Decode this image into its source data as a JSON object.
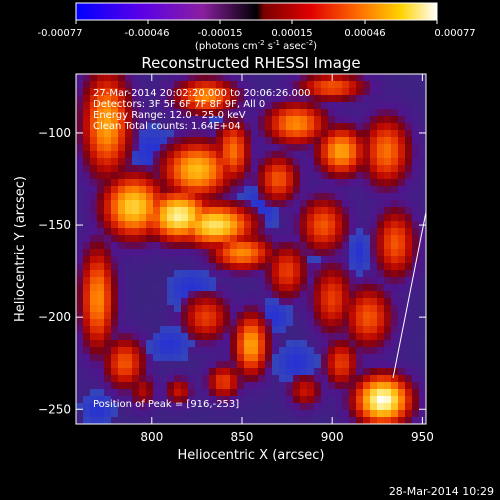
{
  "colorbar": {
    "ticks": [
      "-0.00077",
      "-0.00046",
      "-0.00015",
      "0.00015",
      "0.00046",
      "0.00077"
    ],
    "units_main": "(photons cm",
    "units_sup1": "-2",
    "units_mid1": " s",
    "units_sup2": "-1",
    "units_mid2": " asec",
    "units_sup3": "-2",
    "units_end": ")"
  },
  "annotations": {
    "line1": "27-Mar-2014 20:02:20.000 to 20:06:26.000",
    "line2": "Detectors: 3F 5F 6F 7F 8F 9F, All 0",
    "line3": "Energy Range: 12.0 - 25.0 keV",
    "line4": "Clean     Total counts: 1.64E+04",
    "peak": "Position of Peak = [916,-253]"
  },
  "footer": {
    "timestamp": "28-Mar-2014 10:29"
  },
  "chart_data": {
    "type": "heatmap",
    "title": "Reconstructed RHESSI Image",
    "xlabel": "Heliocentric X (arcsec)",
    "ylabel": "Heliocentric Y (arcsec)",
    "xlim": [
      758,
      952
    ],
    "ylim": [
      -258,
      -68
    ],
    "xticks": [
      800,
      850,
      900,
      950
    ],
    "yticks": [
      -100,
      -150,
      -200,
      -250
    ],
    "colormap": [
      "#0000ff",
      "#6a00e0",
      "#5b2a8a",
      "#3a1f6e",
      "#b00000",
      "#ff4000",
      "#ff8c00",
      "#ffd700",
      "#ffffff"
    ],
    "zlim": [
      -0.00077,
      0.00077
    ],
    "peak": {
      "x": 916,
      "y": -253
    }
  }
}
